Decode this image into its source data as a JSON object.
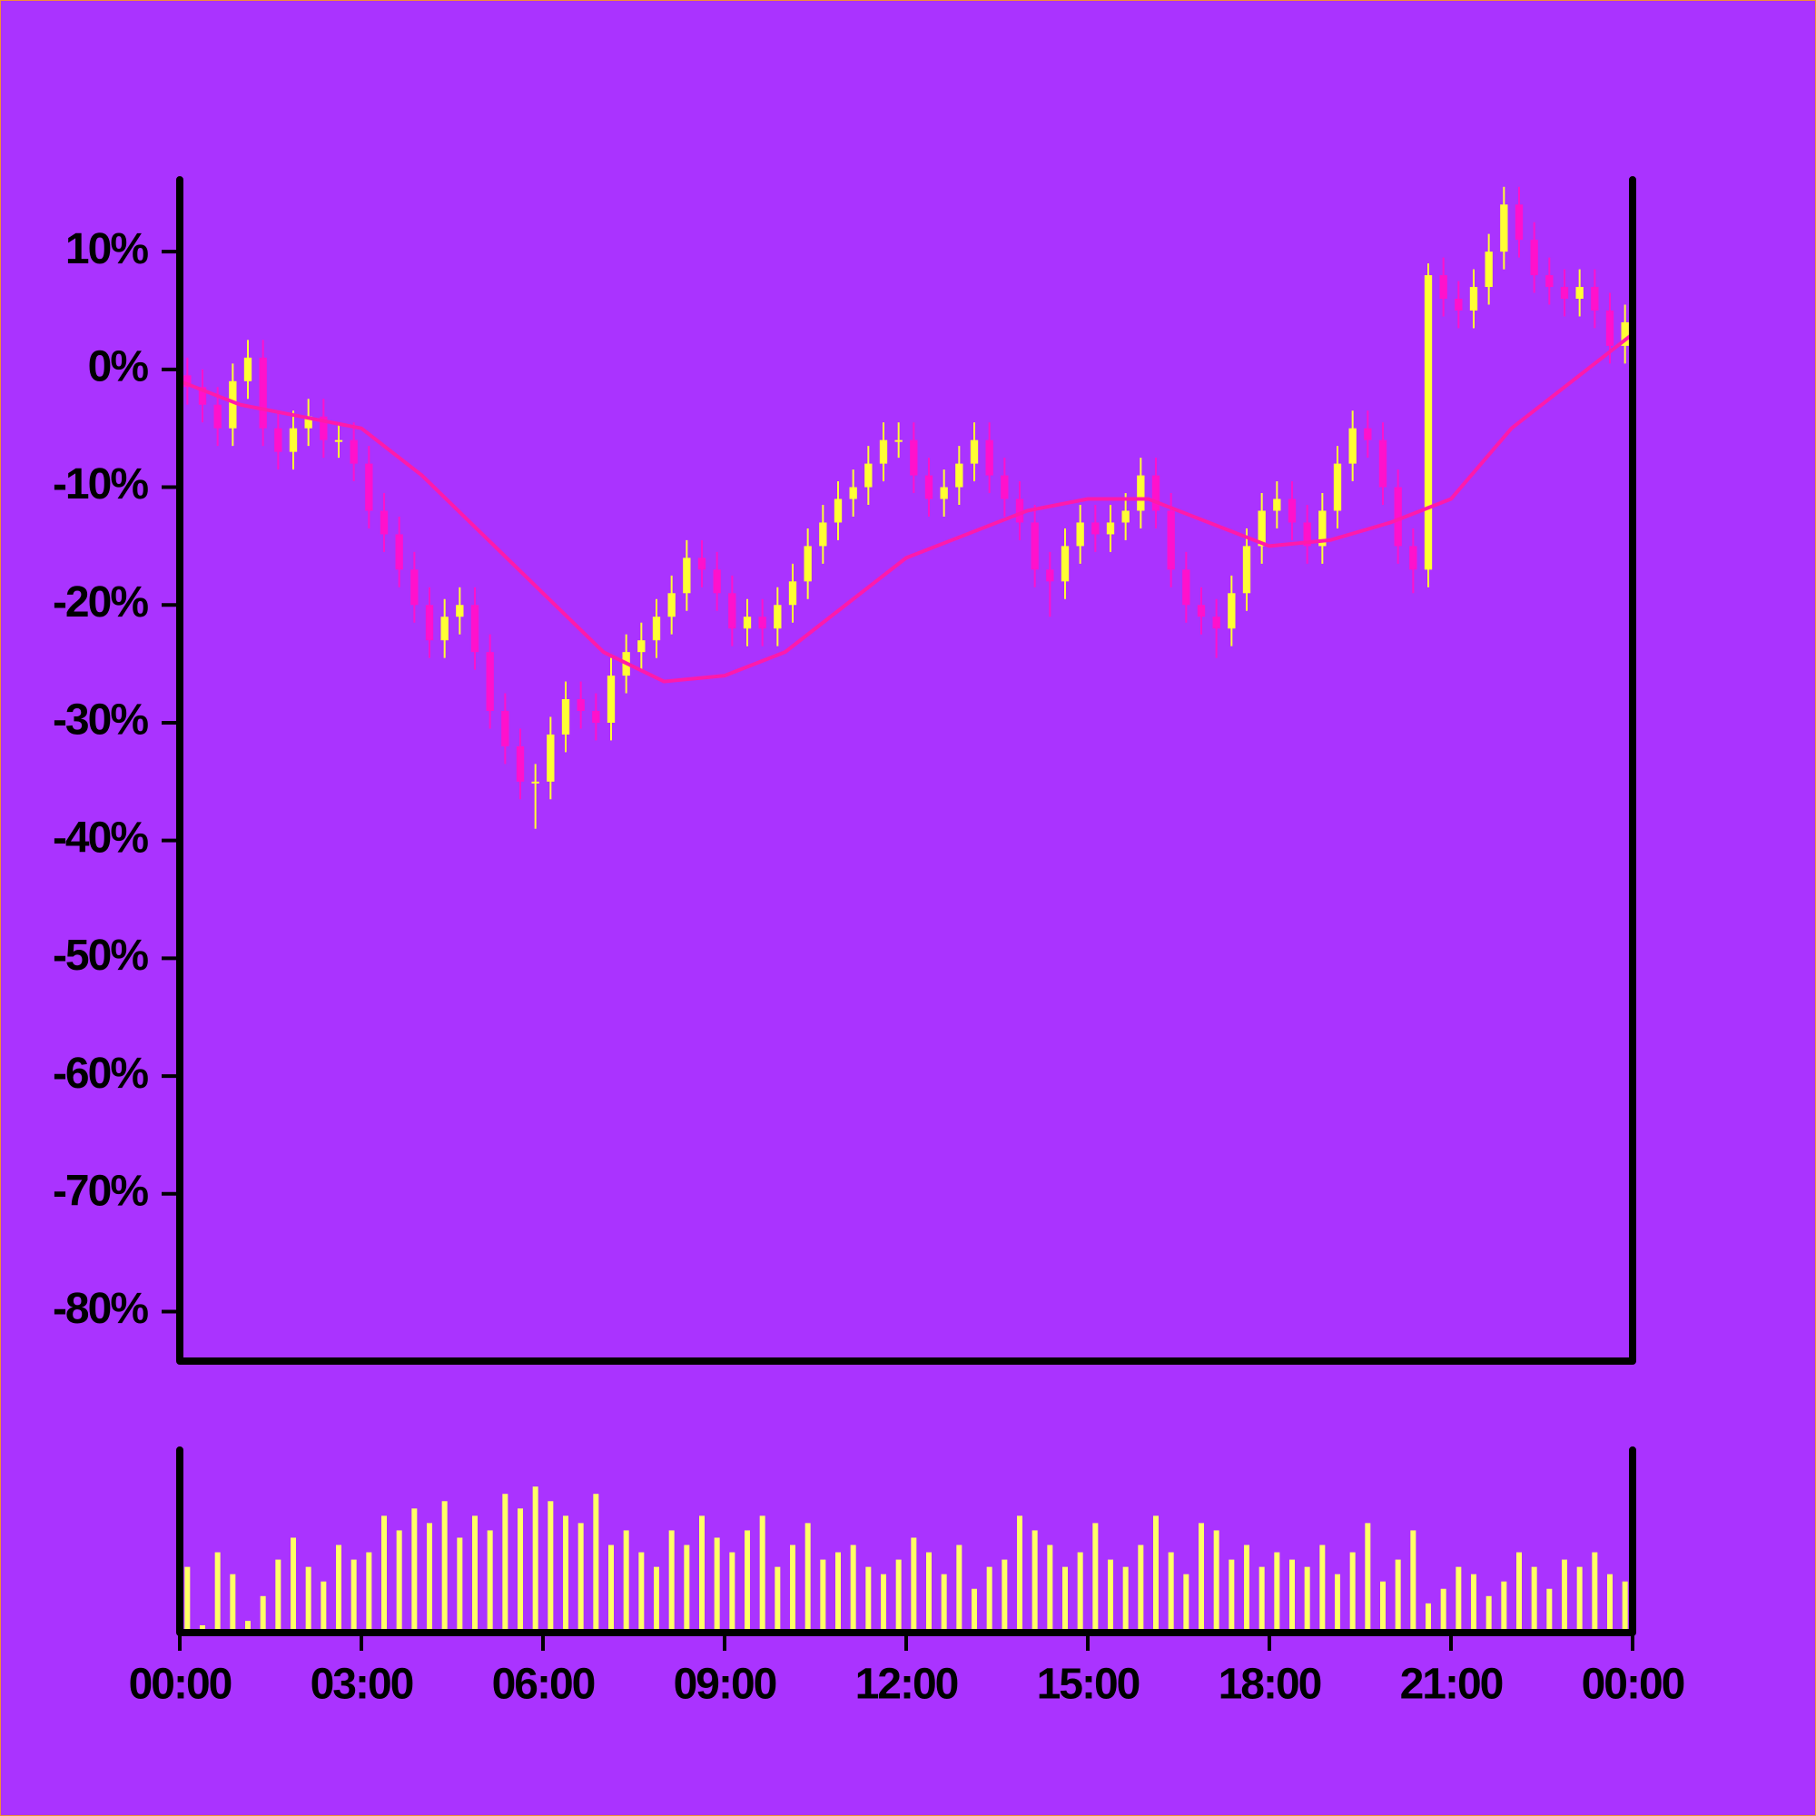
{
  "chart_data": {
    "type": "candlestick",
    "background": "#aa33ff",
    "up_color": "#ffff33",
    "down_color": "#ff11cc",
    "volume_color": "#ffff66",
    "xlim": [
      0,
      24
    ],
    "xticks": [
      {
        "value": 0,
        "label": "00:00"
      },
      {
        "value": 3,
        "label": "03:00"
      },
      {
        "value": 6,
        "label": "06:00"
      },
      {
        "value": 9,
        "label": "09:00"
      },
      {
        "value": 12,
        "label": "12:00"
      },
      {
        "value": 15,
        "label": "15:00"
      },
      {
        "value": 18,
        "label": "18:00"
      },
      {
        "value": 21,
        "label": "21:00"
      },
      {
        "value": 24,
        "label": "00:00"
      }
    ],
    "ylim": [
      -84.2,
      16.1
    ],
    "yticks": [
      {
        "value": 10,
        "label": "10%"
      },
      {
        "value": 0,
        "label": "0%"
      },
      {
        "value": -10,
        "label": "-10%"
      },
      {
        "value": -20,
        "label": "-20%"
      },
      {
        "value": -30,
        "label": "-30%"
      },
      {
        "value": -40,
        "label": "-40%"
      },
      {
        "value": -50,
        "label": "-50%"
      },
      {
        "value": -60,
        "label": "-60%"
      },
      {
        "value": -70,
        "label": "-70%"
      },
      {
        "value": -80,
        "label": "-80%"
      }
    ],
    "volume_ylim": [
      0,
      125
    ],
    "x": [
      0.125,
      0.375,
      0.625,
      0.875,
      1.125,
      1.375,
      1.625,
      1.875,
      2.125,
      2.375,
      2.625,
      2.875,
      3.125,
      3.375,
      3.625,
      3.875,
      4.125,
      4.375,
      4.625,
      4.875,
      5.125,
      5.375,
      5.625,
      5.875,
      6.125,
      6.375,
      6.625,
      6.875,
      7.125,
      7.375,
      7.625,
      7.875,
      8.125,
      8.375,
      8.625,
      8.875,
      9.125,
      9.375,
      9.625,
      9.875,
      10.125,
      10.375,
      10.625,
      10.875,
      11.125,
      11.375,
      11.625,
      11.875,
      12.125,
      12.375,
      12.625,
      12.875,
      13.125,
      13.375,
      13.625,
      13.875,
      14.125,
      14.375,
      14.625,
      14.875,
      15.125,
      15.375,
      15.625,
      15.875,
      16.125,
      16.375,
      16.625,
      16.875,
      17.125,
      17.375,
      17.625,
      17.875,
      18.125,
      18.375,
      18.625,
      18.875,
      19.125,
      19.375,
      19.625,
      19.875,
      20.125,
      20.375,
      20.625,
      20.875,
      21.125,
      21.375,
      21.625,
      21.875,
      22.125,
      22.375,
      22.625,
      22.875,
      23.125,
      23.375,
      23.625,
      23.875
    ],
    "open": [
      -0.5,
      -1.5,
      -3,
      -5,
      -1,
      1,
      -5,
      -7,
      -5,
      -4,
      -6,
      -6,
      -8,
      -12,
      -14,
      -17,
      -20,
      -23,
      -21,
      -20,
      -24,
      -29,
      -32,
      -35,
      -35,
      -31,
      -28,
      -29,
      -30,
      -26,
      -24,
      -23,
      -21,
      -19,
      -16,
      -17,
      -19,
      -22,
      -21,
      -22,
      -20,
      -18,
      -15,
      -13,
      -11,
      -10,
      -8,
      -6,
      -6,
      -9,
      -11,
      -10,
      -8,
      -6,
      -9,
      -11,
      -13,
      -17,
      -18,
      -15,
      -13,
      -14,
      -13,
      -12,
      -9,
      -12,
      -17,
      -20,
      -21,
      -22,
      -19,
      -15,
      -12,
      -11,
      -13,
      -15,
      -12,
      -8,
      -5,
      -6,
      -10,
      -15,
      -17,
      8,
      6,
      5,
      7,
      10,
      14,
      11,
      8,
      7,
      6,
      7,
      5,
      2
    ],
    "high": [
      1,
      0,
      -1.5,
      0.5,
      2.5,
      2.5,
      -3.5,
      -3.5,
      -2.5,
      -2.5,
      -4.5,
      -4.5,
      -6.5,
      -10.5,
      -12.5,
      -15.5,
      -18.5,
      -19.5,
      -18.5,
      -18.5,
      -22.5,
      -27.5,
      -30.5,
      -33.5,
      -29.5,
      -26.5,
      -26.5,
      -27.5,
      -24.5,
      -22.5,
      -21.5,
      -19.5,
      -17.5,
      -14.5,
      -14.5,
      -15.5,
      -17.5,
      -19.5,
      -19.5,
      -18.5,
      -16.5,
      -13.5,
      -11.5,
      -9.5,
      -8.5,
      -6.5,
      -4.5,
      -4.5,
      -4.5,
      -7.5,
      -8.5,
      -6.5,
      -4.5,
      -4.5,
      -7.5,
      -9.5,
      -11.5,
      -15.5,
      -13.5,
      -11.5,
      -11.5,
      -11.5,
      -10.5,
      -7.5,
      -7.5,
      -10.5,
      -15.5,
      -18.5,
      -19.5,
      -17.5,
      -13.5,
      -10.5,
      -9.5,
      -9.5,
      -11.5,
      -10.5,
      -6.5,
      -3.5,
      -3.5,
      -4.5,
      -8.5,
      -13.5,
      9,
      9.5,
      7.5,
      8.5,
      11.5,
      15.5,
      15.5,
      12.5,
      9.5,
      8.5,
      8.5,
      8.5,
      6.5,
      5.5
    ],
    "low": [
      -3,
      -4.5,
      -6.5,
      -6.5,
      -2.5,
      -6.5,
      -8.5,
      -8.5,
      -6.5,
      -7.5,
      -7.5,
      -9.5,
      -13.5,
      -15.5,
      -18.5,
      -21.5,
      -24.5,
      -24.5,
      -22.5,
      -25.5,
      -30.5,
      -33.5,
      -36.5,
      -39,
      -36.5,
      -32.5,
      -30.5,
      -31.5,
      -31.5,
      -27.5,
      -25.5,
      -24.5,
      -22.5,
      -20.5,
      -18.5,
      -20.5,
      -23.5,
      -23.5,
      -23.5,
      -23.5,
      -21.5,
      -19.5,
      -16.5,
      -14.5,
      -12.5,
      -11.5,
      -9.5,
      -7.5,
      -10.5,
      -12.5,
      -12.5,
      -11.5,
      -9.5,
      -10.5,
      -12.5,
      -14.5,
      -18.5,
      -21,
      -19.5,
      -16.5,
      -15.5,
      -15.5,
      -14.5,
      -13.5,
      -13.5,
      -18.5,
      -21.5,
      -22.5,
      -24.5,
      -23.5,
      -20.5,
      -16.5,
      -13.5,
      -14.5,
      -16.5,
      -16.5,
      -13.5,
      -9.5,
      -7.5,
      -11.5,
      -16.5,
      -19,
      -18.5,
      4.5,
      3.5,
      3.5,
      5.5,
      8.5,
      9.5,
      6.5,
      5.5,
      4.5,
      4.5,
      3.5,
      0.5,
      0.5
    ],
    "close": [
      -1.5,
      -3,
      -5,
      -1,
      1,
      -5,
      -7,
      -5,
      -4,
      -6,
      -6,
      -8,
      -12,
      -14,
      -17,
      -20,
      -23,
      -21,
      -20,
      -24,
      -29,
      -32,
      -35,
      -35,
      -31,
      -28,
      -29,
      -30,
      -26,
      -24,
      -23,
      -21,
      -19,
      -16,
      -17,
      -19,
      -22,
      -21,
      -22,
      -20,
      -18,
      -15,
      -13,
      -11,
      -10,
      -8,
      -6,
      -6,
      -9,
      -11,
      -10,
      -8,
      -6,
      -9,
      -11,
      -13,
      -17,
      -18,
      -15,
      -13,
      -14,
      -13,
      -12,
      -9,
      -12,
      -17,
      -20,
      -21,
      -22,
      -19,
      -15,
      -12,
      -11,
      -13,
      -15,
      -12,
      -8,
      -5,
      -6,
      -10,
      -15,
      -17,
      8,
      6,
      5,
      7,
      10,
      14,
      11,
      8,
      7,
      6,
      7,
      5,
      2,
      4
    ],
    "volume": [
      45,
      5,
      55,
      40,
      8,
      25,
      50,
      65,
      45,
      35,
      60,
      50,
      55,
      80,
      70,
      85,
      75,
      90,
      65,
      80,
      70,
      95,
      85,
      100,
      90,
      80,
      75,
      95,
      60,
      70,
      55,
      45,
      70,
      60,
      80,
      65,
      55,
      70,
      80,
      45,
      60,
      75,
      50,
      55,
      60,
      45,
      40,
      50,
      65,
      55,
      40,
      60,
      30,
      45,
      50,
      80,
      70,
      60,
      45,
      55,
      75,
      50,
      45,
      60,
      80,
      55,
      40,
      75,
      70,
      50,
      60,
      45,
      55,
      50,
      45,
      60,
      40,
      55,
      75,
      35,
      50,
      70,
      20,
      30,
      45,
      40,
      25,
      35,
      55,
      45,
      30,
      50,
      45,
      55,
      40,
      35
    ],
    "ma": {
      "color": "#ff1aaa",
      "x": [
        0,
        1,
        2,
        3,
        4,
        5,
        6,
        7,
        8,
        9,
        10,
        11,
        12,
        13,
        14,
        15,
        16,
        17,
        18,
        19,
        20,
        21,
        22,
        23,
        24
      ],
      "values": [
        -1,
        -3,
        -4,
        -5,
        -9,
        -14,
        -19,
        -24,
        -26.5,
        -26,
        -24,
        -20,
        -16,
        -14,
        -12,
        -11,
        -11,
        -13,
        -15,
        -14.5,
        -13,
        -11,
        -5,
        -1,
        3
      ]
    }
  }
}
